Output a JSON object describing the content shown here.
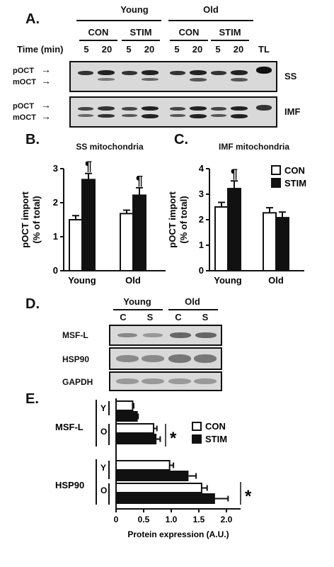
{
  "panelA": {
    "label": "A.",
    "group_headers": [
      "Young",
      "Old"
    ],
    "cond_headers": [
      "CON",
      "STIM",
      "CON",
      "STIM"
    ],
    "time_label": "Time (min)",
    "time_points": [
      "5",
      "20",
      "5",
      "20",
      "5",
      "20",
      "5",
      "20"
    ],
    "tl_label": "TL",
    "band_labels": [
      "pOCT",
      "mOCT"
    ],
    "blot_names": [
      "SS",
      "IMF"
    ]
  },
  "panelB": {
    "label": "B.",
    "title": "SS mitochondria",
    "ylabel_line1": "pOCT import",
    "ylabel_line2": "(% of total)",
    "yticks": [
      "0",
      "1",
      "2",
      "3"
    ],
    "groups": [
      "Young",
      "Old"
    ],
    "sig_mark": "¶"
  },
  "panelC": {
    "label": "C.",
    "title": "IMF mitochondria",
    "ylabel_line1": "pOCT import",
    "ylabel_line2": "(% of total)",
    "yticks": [
      "0",
      "1",
      "2",
      "3",
      "4"
    ],
    "groups": [
      "Young",
      "Old"
    ],
    "legend": [
      "CON",
      "STIM"
    ],
    "sig_mark": "¶"
  },
  "panelD": {
    "label": "D.",
    "group_headers": [
      "Young",
      "Old"
    ],
    "lane_labels": [
      "C",
      "S",
      "C",
      "S"
    ],
    "blot_names": [
      "MSF-L",
      "HSP90",
      "GAPDH"
    ]
  },
  "panelE": {
    "label": "E.",
    "protein_labels": [
      "MSF-L",
      "HSP90"
    ],
    "age_labels": [
      "Y",
      "O",
      "Y",
      "O"
    ],
    "xticks": [
      "0",
      "0.5",
      "1.0",
      "1.5",
      "2.0"
    ],
    "xlabel": "Protein expression (A.U.)",
    "legend": [
      "CON",
      "STIM"
    ],
    "sig_mark": "*"
  },
  "chart_data": [
    {
      "panel": "B",
      "type": "bar",
      "title": "SS mitochondria",
      "ylabel": "pOCT import (% of total)",
      "categories": [
        "Young",
        "Old"
      ],
      "ylim": [
        0,
        3
      ],
      "series": [
        {
          "name": "CON",
          "values": [
            1.5,
            1.68
          ],
          "errors": [
            0.12,
            0.1
          ],
          "color": "#ffffff"
        },
        {
          "name": "STIM",
          "values": [
            2.68,
            2.22
          ],
          "errors": [
            0.18,
            0.22
          ],
          "color": "#111111"
        }
      ],
      "annotations": [
        {
          "category": "Young",
          "series": "STIM",
          "mark": "¶"
        },
        {
          "category": "Old",
          "series": "STIM",
          "mark": "¶"
        }
      ]
    },
    {
      "panel": "C",
      "type": "bar",
      "title": "IMF mitochondria",
      "ylabel": "pOCT import (% of total)",
      "categories": [
        "Young",
        "Old"
      ],
      "ylim": [
        0,
        4
      ],
      "legend": "top-right",
      "series": [
        {
          "name": "CON",
          "values": [
            2.5,
            2.27
          ],
          "errors": [
            0.18,
            0.2
          ],
          "color": "#ffffff"
        },
        {
          "name": "STIM",
          "values": [
            3.22,
            2.08
          ],
          "errors": [
            0.3,
            0.22
          ],
          "color": "#111111"
        }
      ],
      "annotations": [
        {
          "category": "Young",
          "series": "STIM",
          "mark": "¶"
        }
      ]
    },
    {
      "panel": "E",
      "type": "bar",
      "orientation": "horizontal",
      "xlabel": "Protein expression (A.U.)",
      "xlim": [
        0,
        2.0
      ],
      "legend": "right",
      "rows": [
        {
          "protein": "MSF-L",
          "age": "Y",
          "CON": 0.3,
          "STIM": 0.38,
          "CON_err": 0.02,
          "STIM_err": 0.02
        },
        {
          "protein": "MSF-L",
          "age": "O",
          "CON": 0.68,
          "STIM": 0.72,
          "CON_err": 0.06,
          "STIM_err": 0.08
        },
        {
          "protein": "HSP90",
          "age": "Y",
          "CON": 0.97,
          "STIM": 1.3,
          "CON_err": 0.07,
          "STIM_err": 0.15
        },
        {
          "protein": "HSP90",
          "age": "O",
          "CON": 1.55,
          "STIM": 1.78,
          "CON_err": 0.1,
          "STIM_err": 0.25
        }
      ]
    }
  ]
}
